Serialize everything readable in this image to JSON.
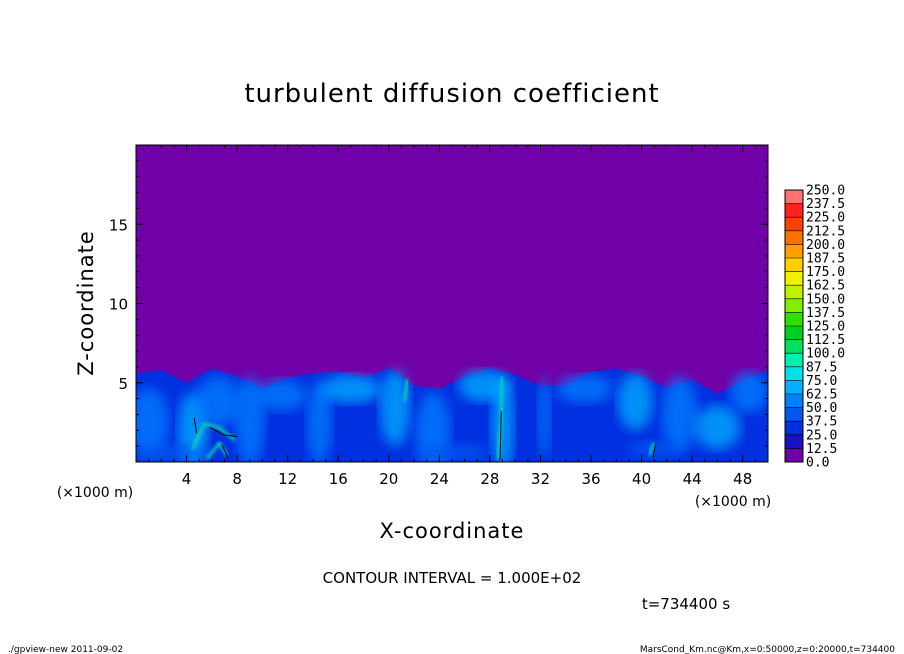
{
  "chart_data": {
    "type": "heatmap",
    "title": "turbulent diffusion coefficient",
    "xlabel": "X-coordinate",
    "ylabel": "Z-coordinate",
    "x_unit_label": "(×1000 m)",
    "y_unit_label": "(×1000 m)",
    "xlim": [
      0,
      50
    ],
    "ylim": [
      0,
      20
    ],
    "x_ticks": [
      4,
      8,
      12,
      16,
      20,
      24,
      28,
      32,
      36,
      40,
      44,
      48
    ],
    "y_ticks": [
      5,
      10,
      15
    ],
    "colorbar": {
      "levels": [
        "0.0",
        "12.5",
        "25.0",
        "37.5",
        "50.0",
        "62.5",
        "75.0",
        "87.5",
        "100.0",
        "112.5",
        "125.0",
        "137.5",
        "150.0",
        "162.5",
        "175.0",
        "187.5",
        "200.0",
        "212.5",
        "225.0",
        "237.5",
        "250.0"
      ],
      "colors": [
        "#7000a8",
        "#1a10c8",
        "#0030e0",
        "#0058f0",
        "#0080ff",
        "#00b0ff",
        "#00e0e8",
        "#00f0b0",
        "#00e060",
        "#00d020",
        "#30e000",
        "#80f000",
        "#c0f000",
        "#f0f000",
        "#ffd000",
        "#ffa000",
        "#ff7000",
        "#ff4000",
        "#ff2020",
        "#ff7070"
      ]
    },
    "background_value": "0.0",
    "boundary_layer_top_approx": [
      [
        0,
        5.6
      ],
      [
        2,
        5.8
      ],
      [
        4,
        5.0
      ],
      [
        6,
        5.9
      ],
      [
        8,
        5.4
      ],
      [
        10,
        4.6
      ],
      [
        12,
        5.3
      ],
      [
        14,
        5.6
      ],
      [
        16,
        5.7
      ],
      [
        18,
        5.3
      ],
      [
        20,
        5.9
      ],
      [
        22,
        4.8
      ],
      [
        24,
        4.6
      ],
      [
        26,
        5.4
      ],
      [
        28,
        5.9
      ],
      [
        30,
        5.5
      ],
      [
        32,
        4.8
      ],
      [
        34,
        4.8
      ],
      [
        36,
        5.7
      ],
      [
        38,
        5.9
      ],
      [
        40,
        5.4
      ],
      [
        42,
        4.7
      ],
      [
        44,
        5.2
      ],
      [
        46,
        4.3
      ],
      [
        48,
        5.1
      ],
      [
        50,
        5.8
      ]
    ],
    "contour_interval_label": "CONTOUR INTERVAL = 1.000E+02",
    "time_label": "t=734400 s"
  },
  "footer": {
    "left": "./gpview-new  2011-09-02",
    "right": "MarsCond_Km.nc@Km,x=0:50000,z=0:20000,t=734400"
  }
}
